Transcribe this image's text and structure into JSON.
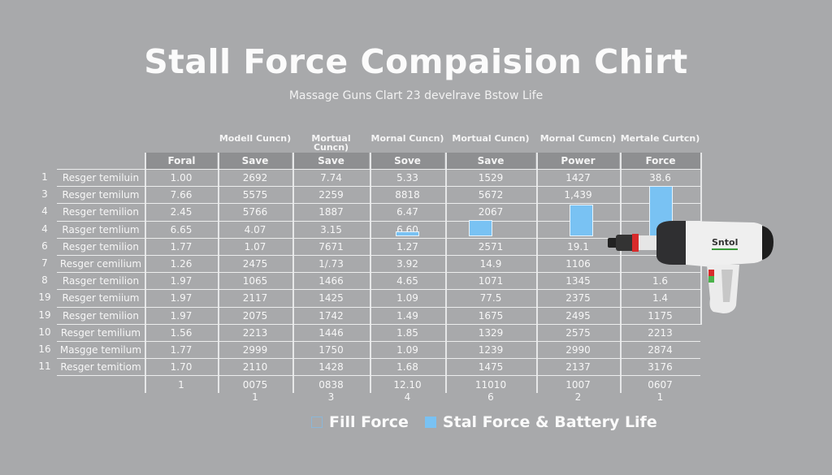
{
  "chart_data": {
    "type": "table",
    "title": "Stall Force Compaision Chirt",
    "subtitle": "Massage Guns Clart 23 develrave Bstow Life",
    "column_groups": [
      "",
      "Modell Cuncn)",
      "Mortual Cuncn)",
      "Mornal Cuncn)",
      "Mortual Cuncn)",
      "Mornal Cumcn)",
      "Mertale Curtcn)"
    ],
    "columns": [
      "Foral",
      "Save",
      "Save",
      "Sove",
      "Save",
      "Power",
      "Force"
    ],
    "rows": [
      {
        "num": "1",
        "name": "Resger temiluin",
        "values": [
          "1.00",
          "2692",
          "7.74",
          "5.33",
          "1529",
          "1427",
          "38.6"
        ]
      },
      {
        "num": "3",
        "name": "Resger temilum",
        "values": [
          "7.66",
          "5575",
          "2259",
          "8818",
          "5672",
          "1,439",
          ""
        ]
      },
      {
        "num": "4",
        "name": "Resger temilion",
        "values": [
          "2.45",
          "5766",
          "1887",
          "6.47",
          "2067",
          "",
          ""
        ]
      },
      {
        "num": "4",
        "name": "Rasger temlium",
        "values": [
          "6.65",
          "4.07",
          "3.15",
          "6.60",
          "",
          "",
          ""
        ]
      },
      {
        "num": "6",
        "name": "Resger temilion",
        "values": [
          "1.77",
          "1.07",
          "7671",
          "1.27",
          "2571",
          "19.1",
          ""
        ]
      },
      {
        "num": "7",
        "name": "Resger cemilium",
        "values": [
          "1.26",
          "2475",
          "1/.73",
          "3.92",
          "14.9",
          "1106",
          ""
        ]
      },
      {
        "num": "8",
        "name": "Rasger temilion",
        "values": [
          "1.97",
          "1065",
          "1466",
          "4.65",
          "1071",
          "1345",
          "1.6"
        ]
      },
      {
        "num": "19",
        "name": "Resger temiium",
        "values": [
          "1.97",
          "2117",
          "1425",
          "1.09",
          "77.5",
          "2375",
          "1.4"
        ]
      },
      {
        "num": "19",
        "name": "Resger temilion",
        "values": [
          "1.97",
          "2075",
          "1742",
          "1.49",
          "1675",
          "2495",
          "1175"
        ]
      },
      {
        "num": "10",
        "name": "Resger temilium",
        "values": [
          "1.56",
          "2213",
          "1446",
          "1.85",
          "1329",
          "2575",
          "2213"
        ]
      },
      {
        "num": "16",
        "name": "Masgge temilum",
        "values": [
          "1.77",
          "2999",
          "1750",
          "1.09",
          "1239",
          "2990",
          "2874"
        ]
      },
      {
        "num": "11",
        "name": "Resger temitiom",
        "values": [
          "1.70",
          "2110",
          "1428",
          "1.68",
          "1475",
          "2137",
          "3176"
        ]
      }
    ],
    "footer": [
      {
        "top": "1",
        "bottom": ""
      },
      {
        "top": "0075",
        "bottom": "1"
      },
      {
        "top": "0838",
        "bottom": "3"
      },
      {
        "top": "12.10",
        "bottom": "4"
      },
      {
        "top": "11010",
        "bottom": "6"
      },
      {
        "top": "1007",
        "bottom": "2"
      },
      {
        "top": "0607",
        "bottom": "1"
      }
    ],
    "bars": [
      {
        "column": "Sove",
        "row_bottom": 4,
        "height_rows": 0.1
      },
      {
        "column": "Save",
        "row_bottom": 4,
        "height_rows": 1
      },
      {
        "column": "Power",
        "row_bottom": 4,
        "height_rows": 2
      },
      {
        "column": "Force",
        "row_bottom": 4,
        "height_rows": 3
      }
    ],
    "legend": [
      {
        "label": "Fill Force",
        "style": "outline",
        "color": "#8bb7d8"
      },
      {
        "label": "Stal Force & Battery Life",
        "style": "filled",
        "color": "#79c2f3"
      }
    ]
  },
  "colors": {
    "background": "#a8a9ab",
    "header_band": "#8e8f91",
    "bar": "#79c2f3",
    "text": "#ffffff"
  },
  "product_image": {
    "brand_label": "Sntol",
    "description": "white massage gun / drill"
  }
}
